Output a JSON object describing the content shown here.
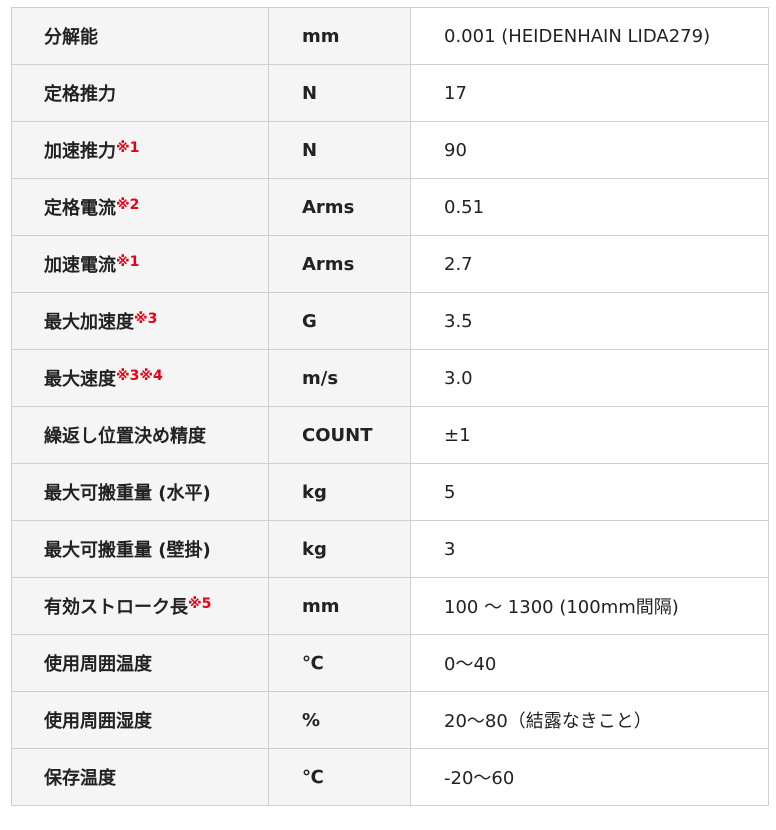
{
  "note_color": "#e60012",
  "rows": [
    {
      "item": "分解能",
      "note": "",
      "unit": "mm",
      "value": "0.001 (HEIDENHAIN LIDA279)"
    },
    {
      "item": "定格推力",
      "note": "",
      "unit": "N",
      "value": "17"
    },
    {
      "item": "加速推力",
      "note": "※1",
      "unit": "N",
      "value": "90"
    },
    {
      "item": "定格電流",
      "note": "※2",
      "unit": "Arms",
      "value": "0.51"
    },
    {
      "item": "加速電流",
      "note": "※1",
      "unit": "Arms",
      "value": "2.7"
    },
    {
      "item": "最大加速度",
      "note": "※3",
      "unit": "G",
      "value": "3.5"
    },
    {
      "item": "最大速度",
      "note": "※3※4",
      "unit": "m/s",
      "value": "3.0"
    },
    {
      "item": "繰返し位置決め精度",
      "note": "",
      "unit": "COUNT",
      "value": "±1"
    },
    {
      "item": "最大可搬重量 (水平)",
      "note": "",
      "unit": "kg",
      "value": "5"
    },
    {
      "item": "最大可搬重量 (壁掛)",
      "note": "",
      "unit": "kg",
      "value": "3"
    },
    {
      "item": "有効ストローク長",
      "note": "※5",
      "unit": "mm",
      "value": "100 〜 1300 (100mm間隔)"
    },
    {
      "item": "使用周囲温度",
      "note": "",
      "unit": "℃",
      "value": "0〜40"
    },
    {
      "item": "使用周囲湿度",
      "note": "",
      "unit": "%",
      "value": "20〜80（結露なきこと）"
    },
    {
      "item": "保存温度",
      "note": "",
      "unit": "℃",
      "value": "-20〜60"
    }
  ]
}
